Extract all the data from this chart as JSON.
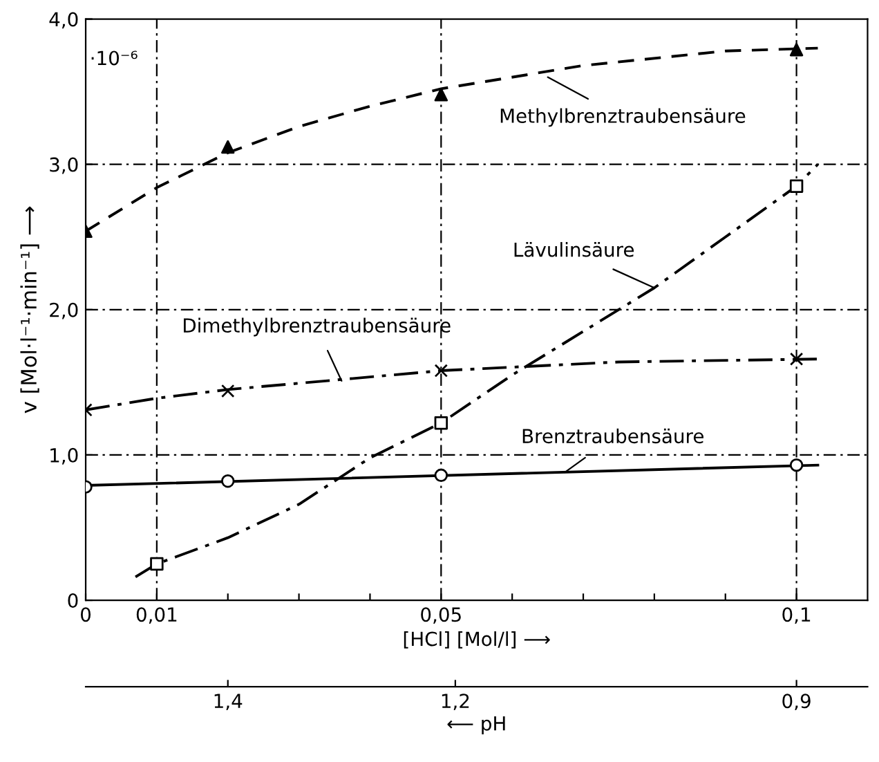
{
  "chart_data": {
    "type": "line",
    "xlabel": "[HCl] [Mol/l] ⟶",
    "ylabel": "v [Mol·l⁻¹·min⁻¹] ⟶",
    "x2label": "⟵ pH",
    "xlim": [
      0,
      0.11
    ],
    "ylim": [
      0,
      4
    ],
    "xticks": [
      {
        "value": 0,
        "label": "0"
      },
      {
        "value": 0.01,
        "label": "0,01"
      },
      {
        "value": 0.02,
        "label": null
      },
      {
        "value": 0.03,
        "label": null
      },
      {
        "value": 0.04,
        "label": null
      },
      {
        "value": 0.05,
        "label": "0,05"
      },
      {
        "value": 0.06,
        "label": null
      },
      {
        "value": 0.07,
        "label": null
      },
      {
        "value": 0.08,
        "label": null
      },
      {
        "value": 0.09,
        "label": null
      },
      {
        "value": 0.1,
        "label": "0,1"
      }
    ],
    "yticks": [
      {
        "value": 0,
        "label": "0"
      },
      {
        "value": 1,
        "label": "1,0"
      },
      {
        "value": 2,
        "label": "2,0"
      },
      {
        "value": 3,
        "label": "3,0"
      },
      {
        "value": 4,
        "label": "4,0"
      }
    ],
    "x2lim": [
      1.525,
      0.8375
    ],
    "x2ticks": [
      {
        "value": 1.4,
        "label": "1,4"
      },
      {
        "value": 1.2,
        "label": "1,2"
      },
      {
        "value": 0.9,
        "label": "0,9"
      }
    ],
    "grid": true,
    "series": [
      {
        "color": "#000000",
        "line_style": "dashed",
        "marker": "none",
        "x": [
          0,
          0.01,
          0.02,
          0.03,
          0.04,
          0.05,
          0.07,
          0.09,
          0.103
        ],
        "values": [
          2.54,
          2.84,
          3.08,
          3.26,
          3.4,
          3.52,
          3.68,
          3.78,
          3.8
        ]
      },
      {
        "type": "scatter",
        "color": "#000000",
        "marker": "triangle",
        "x": [
          0,
          0.02,
          0.05,
          0.1
        ],
        "values": [
          2.54,
          3.12,
          3.48,
          3.79
        ]
      },
      {
        "color": "#000000",
        "line_style": "dashdot",
        "marker": "none",
        "x": [
          0.007,
          0.01,
          0.02,
          0.03,
          0.04,
          0.05,
          0.06,
          0.07,
          0.08,
          0.09,
          0.1,
          0.103
        ],
        "values": [
          0.16,
          0.25,
          0.43,
          0.66,
          0.98,
          1.22,
          1.55,
          1.85,
          2.15,
          2.5,
          2.85,
          3.0
        ]
      },
      {
        "type": "scatter",
        "color": "#000000",
        "marker": "square",
        "x": [
          0.01,
          0.05,
          0.1
        ],
        "values": [
          0.25,
          1.22,
          2.85
        ]
      },
      {
        "color": "#000000",
        "line_style": "dashdot",
        "marker": "none",
        "x": [
          0,
          0.01,
          0.02,
          0.05,
          0.075,
          0.103
        ],
        "values": [
          1.31,
          1.39,
          1.45,
          1.58,
          1.64,
          1.66
        ]
      },
      {
        "type": "scatter",
        "color": "#000000",
        "marker": "cross",
        "x": [
          0,
          0.02,
          0.05,
          0.1
        ],
        "values": [
          1.31,
          1.44,
          1.58,
          1.66
        ]
      },
      {
        "color": "#000000",
        "line_style": "solid",
        "marker": "none",
        "x": [
          0,
          0.103
        ],
        "values": [
          0.79,
          0.93
        ]
      },
      {
        "type": "scatter",
        "color": "#000000",
        "marker": "circle",
        "x": [
          0,
          0.02,
          0.05,
          0.1
        ],
        "values": [
          0.78,
          0.82,
          0.86,
          0.93
        ]
      }
    ],
    "annotations": [
      "·10⁻⁶",
      {
        "text": "Methylbrenztraubensäure",
        "x": 0.065,
        "y": 3.6
      },
      {
        "text": "Lävulinsäure",
        "x": 0.08,
        "y": 2.15
      },
      {
        "text": "Dimethylbrenztraubensäure",
        "x": 0.036,
        "y": 1.51
      },
      {
        "text": "Brenztraubensäure",
        "x": 0.0674,
        "y": 0.88
      }
    ]
  }
}
